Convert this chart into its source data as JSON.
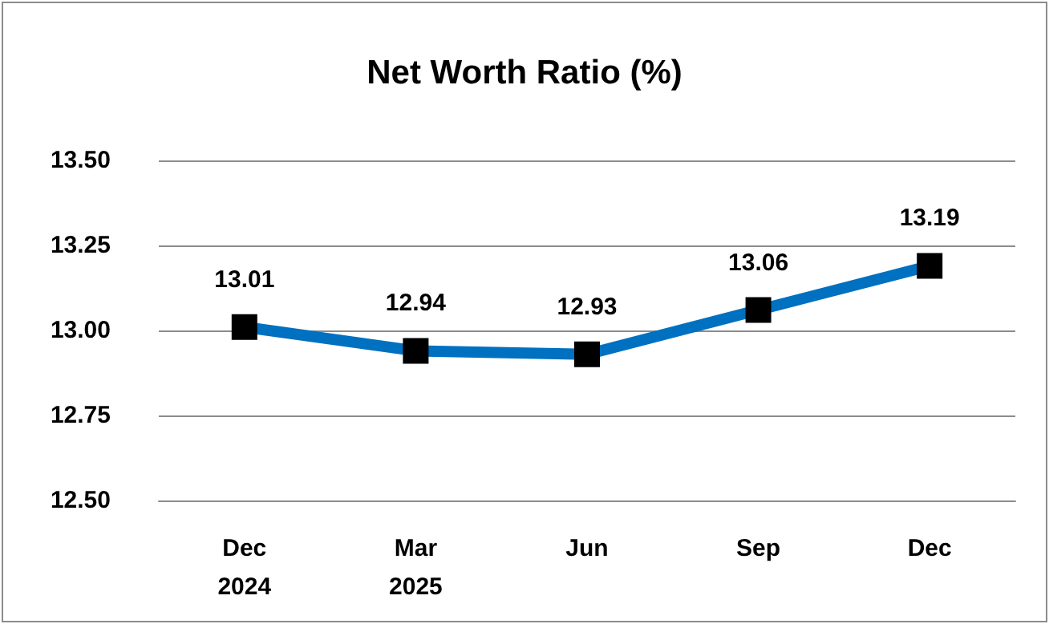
{
  "chart_data": {
    "type": "line",
    "title": "Net Worth Ratio (%)",
    "categories": [
      "Dec\n2024",
      "Mar\n2025",
      "Jun",
      "Sep",
      "Dec"
    ],
    "series": [
      {
        "color": "#0070c0",
        "values": [
          13.01,
          12.94,
          12.93,
          13.06,
          13.19
        ]
      }
    ],
    "ylim": [
      12.5,
      13.5
    ],
    "yticks": [
      {
        "value": 12.5,
        "label": "12.50"
      },
      {
        "value": 12.75,
        "label": "12.75"
      },
      {
        "value": 13,
        "label": "13.00"
      },
      {
        "value": 13.25,
        "label": "13.25"
      },
      {
        "value": 13.5,
        "label": "13.50"
      }
    ],
    "grid": "y",
    "marker": "square",
    "line_style": "solid",
    "data_labels": true
  }
}
